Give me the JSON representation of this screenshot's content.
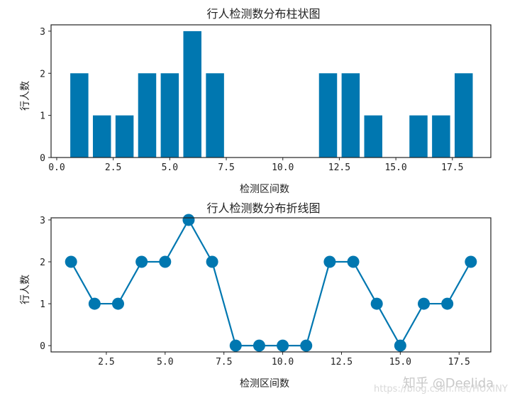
{
  "chart_data": [
    {
      "type": "bar",
      "title": "行人检测数分布柱状图",
      "xlabel": "检测区间数",
      "ylabel": "行人数",
      "x": [
        1,
        2,
        3,
        4,
        5,
        6,
        7,
        8,
        9,
        10,
        11,
        12,
        13,
        14,
        15,
        16,
        17,
        18
      ],
      "values": [
        2,
        1,
        1,
        2,
        2,
        3,
        2,
        0,
        0,
        0,
        0,
        2,
        2,
        1,
        0,
        1,
        1,
        2
      ],
      "xticks": [
        "0.0",
        "2.5",
        "5.0",
        "7.5",
        "10.0",
        "12.5",
        "15.0",
        "17.5"
      ],
      "yticks": [
        "0",
        "1",
        "2",
        "3"
      ],
      "xlim": [
        -0.25,
        19.2
      ],
      "ylim": [
        0,
        3.15
      ],
      "color": "#0077b0",
      "grid": false
    },
    {
      "type": "line",
      "title": "行人检测数分布折线图",
      "xlabel": "检测区间数",
      "ylabel": "行人数",
      "x": [
        1,
        2,
        3,
        4,
        5,
        6,
        7,
        8,
        9,
        10,
        11,
        12,
        13,
        14,
        15,
        16,
        17,
        18
      ],
      "values": [
        2,
        1,
        1,
        2,
        2,
        3,
        2,
        0,
        0,
        0,
        0,
        2,
        2,
        1,
        0,
        1,
        1,
        2
      ],
      "xticks": [
        "2.5",
        "5.0",
        "7.5",
        "10.0",
        "12.5",
        "15.0",
        "17.5"
      ],
      "yticks": [
        "0",
        "1",
        "2",
        "3"
      ],
      "xlim": [
        0.15,
        18.85
      ],
      "ylim": [
        -0.15,
        3.05
      ],
      "marker": "o",
      "color": "#0077b0",
      "grid": false
    }
  ],
  "watermark": {
    "line1": "知乎 @Deelida",
    "line2": "https://blog.csdn.net/HUXINY"
  }
}
